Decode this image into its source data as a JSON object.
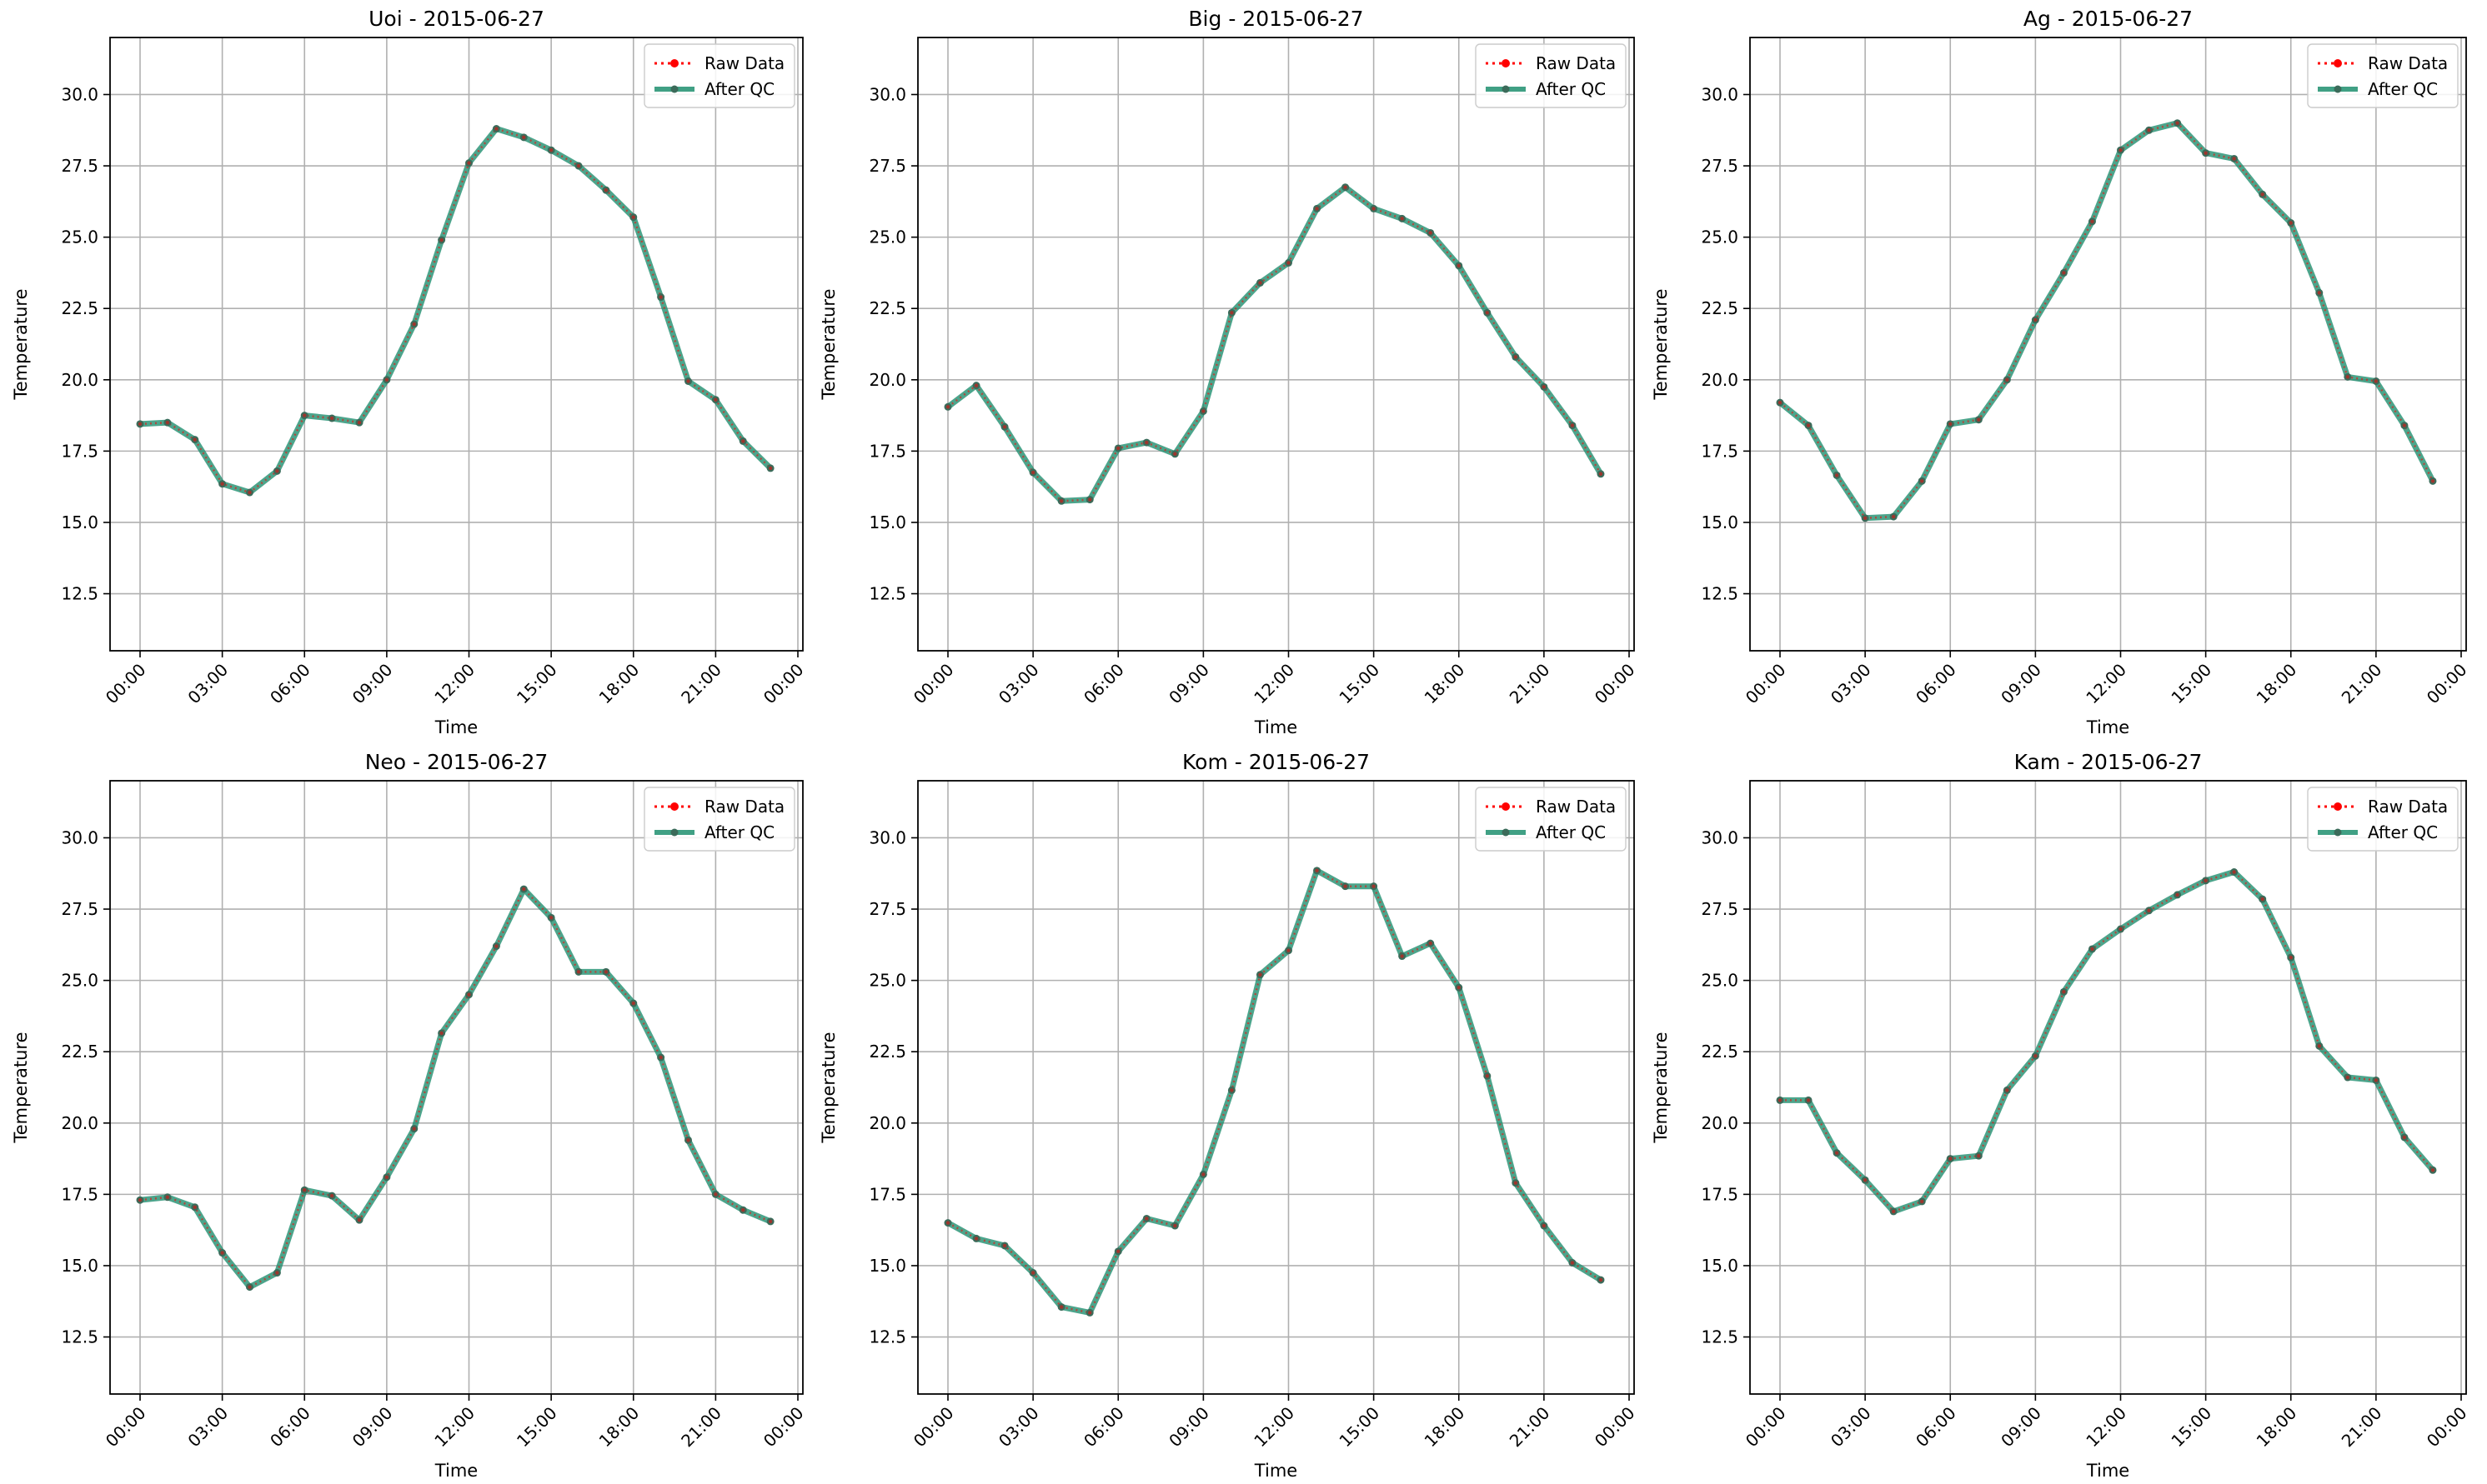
{
  "figure": {
    "legend": {
      "raw_label": "Raw Data",
      "qc_label": "After QC",
      "placement": "upper right"
    },
    "colors": {
      "raw": "#ff0000",
      "qc": "#1f8f6f",
      "grid": "#b0b0b0",
      "axis": "#000000"
    }
  },
  "chart_data": [
    {
      "type": "line",
      "title": "Uoi - 2015-06-27",
      "xlabel": "Time",
      "ylabel": "Temperature",
      "x_ticks": [
        "00:00",
        "03:00",
        "06:00",
        "09:00",
        "12:00",
        "15:00",
        "18:00",
        "21:00",
        "00:00"
      ],
      "y_ticks": [
        "12.5",
        "15.0",
        "17.5",
        "20.0",
        "22.5",
        "25.0",
        "27.5",
        "30.0"
      ],
      "ylim": [
        10.5,
        32.0
      ],
      "grid": true,
      "x": [
        "00:00",
        "01:00",
        "02:00",
        "03:00",
        "04:00",
        "05:00",
        "06:00",
        "07:00",
        "08:00",
        "09:00",
        "10:00",
        "11:00",
        "12:00",
        "13:00",
        "14:00",
        "15:00",
        "16:00",
        "17:00",
        "18:00",
        "19:00",
        "20:00",
        "21:00",
        "22:00",
        "23:00"
      ],
      "series": [
        {
          "name": "Raw Data",
          "values": [
            18.45,
            18.5,
            17.9,
            16.35,
            16.05,
            16.8,
            18.75,
            18.65,
            18.5,
            20.0,
            21.95,
            24.9,
            27.6,
            28.8,
            28.5,
            28.05,
            27.5,
            26.65,
            25.7,
            22.9,
            19.95,
            19.3,
            17.85,
            16.9
          ]
        },
        {
          "name": "After QC",
          "values": [
            18.45,
            18.5,
            17.9,
            16.35,
            16.05,
            16.8,
            18.75,
            18.65,
            18.5,
            20.0,
            21.95,
            24.9,
            27.6,
            28.8,
            28.5,
            28.05,
            27.5,
            26.65,
            25.7,
            22.9,
            19.95,
            19.3,
            17.85,
            16.9
          ]
        }
      ]
    },
    {
      "type": "line",
      "title": "Big - 2015-06-27",
      "xlabel": "Time",
      "ylabel": "Temperature",
      "x_ticks": [
        "00:00",
        "03:00",
        "06:00",
        "09:00",
        "12:00",
        "15:00",
        "18:00",
        "21:00",
        "00:00"
      ],
      "y_ticks": [
        "12.5",
        "15.0",
        "17.5",
        "20.0",
        "22.5",
        "25.0",
        "27.5",
        "30.0"
      ],
      "ylim": [
        10.5,
        32.0
      ],
      "grid": true,
      "x": [
        "00:00",
        "01:00",
        "02:00",
        "03:00",
        "04:00",
        "05:00",
        "06:00",
        "07:00",
        "08:00",
        "09:00",
        "10:00",
        "11:00",
        "12:00",
        "13:00",
        "14:00",
        "15:00",
        "16:00",
        "17:00",
        "18:00",
        "19:00",
        "20:00",
        "21:00",
        "22:00",
        "23:00"
      ],
      "series": [
        {
          "name": "Raw Data",
          "values": [
            19.05,
            19.8,
            18.35,
            16.75,
            15.75,
            15.8,
            17.6,
            17.8,
            17.4,
            18.9,
            22.35,
            23.4,
            24.1,
            26.0,
            26.75,
            26.0,
            25.65,
            25.15,
            24.0,
            22.35,
            20.8,
            19.75,
            18.4,
            16.7
          ]
        },
        {
          "name": "After QC",
          "values": [
            19.05,
            19.8,
            18.35,
            16.75,
            15.75,
            15.8,
            17.6,
            17.8,
            17.4,
            18.9,
            22.35,
            23.4,
            24.1,
            26.0,
            26.75,
            26.0,
            25.65,
            25.15,
            24.0,
            22.35,
            20.8,
            19.75,
            18.4,
            16.7
          ]
        }
      ]
    },
    {
      "type": "line",
      "title": "Ag - 2015-06-27",
      "xlabel": "Time",
      "ylabel": "Temperature",
      "x_ticks": [
        "00:00",
        "03:00",
        "06:00",
        "09:00",
        "12:00",
        "15:00",
        "18:00",
        "21:00",
        "00:00"
      ],
      "y_ticks": [
        "12.5",
        "15.0",
        "17.5",
        "20.0",
        "22.5",
        "25.0",
        "27.5",
        "30.0"
      ],
      "ylim": [
        10.5,
        32.0
      ],
      "grid": true,
      "x": [
        "00:00",
        "01:00",
        "02:00",
        "03:00",
        "04:00",
        "05:00",
        "06:00",
        "07:00",
        "08:00",
        "09:00",
        "10:00",
        "11:00",
        "12:00",
        "13:00",
        "14:00",
        "15:00",
        "16:00",
        "17:00",
        "18:00",
        "19:00",
        "20:00",
        "21:00",
        "22:00",
        "23:00"
      ],
      "series": [
        {
          "name": "Raw Data",
          "values": [
            19.2,
            18.4,
            16.65,
            15.15,
            15.2,
            16.45,
            18.45,
            18.6,
            20.0,
            22.1,
            23.75,
            25.55,
            28.05,
            28.75,
            29.0,
            27.95,
            27.75,
            26.5,
            25.5,
            23.05,
            20.1,
            19.95,
            18.4,
            16.45
          ]
        },
        {
          "name": "After QC",
          "values": [
            19.2,
            18.4,
            16.65,
            15.15,
            15.2,
            16.45,
            18.45,
            18.6,
            20.0,
            22.1,
            23.75,
            25.55,
            28.05,
            28.75,
            29.0,
            27.95,
            27.75,
            26.5,
            25.5,
            23.05,
            20.1,
            19.95,
            18.4,
            16.45
          ]
        }
      ]
    },
    {
      "type": "line",
      "title": "Neo - 2015-06-27",
      "xlabel": "Time",
      "ylabel": "Temperature",
      "x_ticks": [
        "00:00",
        "03:00",
        "06:00",
        "09:00",
        "12:00",
        "15:00",
        "18:00",
        "21:00",
        "00:00"
      ],
      "y_ticks": [
        "12.5",
        "15.0",
        "17.5",
        "20.0",
        "22.5",
        "25.0",
        "27.5",
        "30.0"
      ],
      "ylim": [
        10.5,
        32.0
      ],
      "grid": true,
      "x": [
        "00:00",
        "01:00",
        "02:00",
        "03:00",
        "04:00",
        "05:00",
        "06:00",
        "07:00",
        "08:00",
        "09:00",
        "10:00",
        "11:00",
        "12:00",
        "13:00",
        "14:00",
        "15:00",
        "16:00",
        "17:00",
        "18:00",
        "19:00",
        "20:00",
        "21:00",
        "22:00",
        "23:00"
      ],
      "series": [
        {
          "name": "Raw Data",
          "values": [
            17.3,
            17.4,
            17.05,
            15.45,
            14.25,
            14.75,
            17.65,
            17.45,
            16.6,
            18.1,
            19.8,
            23.15,
            24.5,
            26.2,
            28.2,
            27.2,
            25.3,
            25.3,
            24.2,
            22.3,
            19.4,
            17.5,
            16.95,
            16.55
          ]
        },
        {
          "name": "After QC",
          "values": [
            17.3,
            17.4,
            17.05,
            15.45,
            14.25,
            14.75,
            17.65,
            17.45,
            16.6,
            18.1,
            19.8,
            23.15,
            24.5,
            26.2,
            28.2,
            27.2,
            25.3,
            25.3,
            24.2,
            22.3,
            19.4,
            17.5,
            16.95,
            16.55
          ]
        }
      ]
    },
    {
      "type": "line",
      "title": "Kom - 2015-06-27",
      "xlabel": "Time",
      "ylabel": "Temperature",
      "x_ticks": [
        "00:00",
        "03:00",
        "06:00",
        "09:00",
        "12:00",
        "15:00",
        "18:00",
        "21:00",
        "00:00"
      ],
      "y_ticks": [
        "12.5",
        "15.0",
        "17.5",
        "20.0",
        "22.5",
        "25.0",
        "27.5",
        "30.0"
      ],
      "ylim": [
        10.5,
        32.0
      ],
      "grid": true,
      "x": [
        "00:00",
        "01:00",
        "02:00",
        "03:00",
        "04:00",
        "05:00",
        "06:00",
        "07:00",
        "08:00",
        "09:00",
        "10:00",
        "11:00",
        "12:00",
        "13:00",
        "14:00",
        "15:00",
        "16:00",
        "17:00",
        "18:00",
        "19:00",
        "20:00",
        "21:00",
        "22:00",
        "23:00"
      ],
      "series": [
        {
          "name": "Raw Data",
          "values": [
            16.5,
            15.95,
            15.7,
            14.75,
            13.55,
            13.35,
            15.5,
            16.65,
            16.4,
            18.2,
            21.15,
            25.2,
            26.05,
            28.85,
            28.3,
            28.3,
            25.85,
            26.3,
            24.75,
            21.65,
            17.9,
            16.4,
            15.1,
            14.5
          ]
        },
        {
          "name": "After QC",
          "values": [
            16.5,
            15.95,
            15.7,
            14.75,
            13.55,
            13.35,
            15.5,
            16.65,
            16.4,
            18.2,
            21.15,
            25.2,
            26.05,
            28.85,
            28.3,
            28.3,
            25.85,
            26.3,
            24.75,
            21.65,
            17.9,
            16.4,
            15.1,
            14.5
          ]
        }
      ]
    },
    {
      "type": "line",
      "title": "Kam - 2015-06-27",
      "xlabel": "Time",
      "ylabel": "Temperature",
      "x_ticks": [
        "00:00",
        "03:00",
        "06:00",
        "09:00",
        "12:00",
        "15:00",
        "18:00",
        "21:00",
        "00:00"
      ],
      "y_ticks": [
        "12.5",
        "15.0",
        "17.5",
        "20.0",
        "22.5",
        "25.0",
        "27.5",
        "30.0"
      ],
      "ylim": [
        10.5,
        32.0
      ],
      "grid": true,
      "x": [
        "00:00",
        "01:00",
        "02:00",
        "03:00",
        "04:00",
        "05:00",
        "06:00",
        "07:00",
        "08:00",
        "09:00",
        "10:00",
        "11:00",
        "12:00",
        "13:00",
        "14:00",
        "15:00",
        "16:00",
        "17:00",
        "18:00",
        "19:00",
        "20:00",
        "21:00",
        "22:00",
        "23:00"
      ],
      "series": [
        {
          "name": "Raw Data",
          "values": [
            20.8,
            20.8,
            18.95,
            18.0,
            16.9,
            17.25,
            18.75,
            18.85,
            21.15,
            22.35,
            24.6,
            26.1,
            26.8,
            27.45,
            28.0,
            28.5,
            28.8,
            27.85,
            25.8,
            22.7,
            21.6,
            21.5,
            19.5,
            18.35
          ]
        },
        {
          "name": "After QC",
          "values": [
            20.8,
            20.8,
            18.95,
            18.0,
            16.9,
            17.25,
            18.75,
            18.85,
            21.15,
            22.35,
            24.6,
            26.1,
            26.8,
            27.45,
            28.0,
            28.5,
            28.8,
            27.85,
            25.8,
            22.7,
            21.6,
            21.5,
            19.5,
            18.35
          ]
        }
      ]
    }
  ]
}
